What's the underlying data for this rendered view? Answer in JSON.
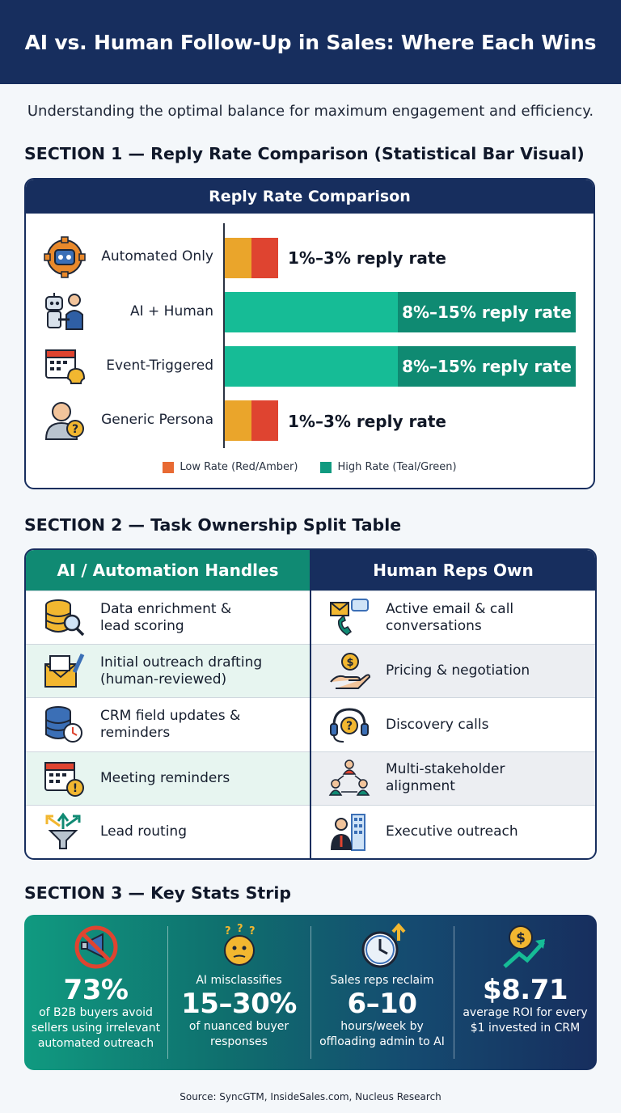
{
  "header": {
    "title": "AI vs. Human Follow-Up in Sales: Where Each Wins"
  },
  "subtitle": "Understanding the optimal balance for maximum engagement and efficiency.",
  "section1": {
    "title": "SECTION 1 — Reply Rate Comparison (Statistical Bar Visual)",
    "card_title": "Reply Rate Comparison",
    "rows": [
      {
        "label": "Automated Only",
        "bar_text": "1%–3% reply rate",
        "level": "low",
        "icon": "robot-gear-icon"
      },
      {
        "label": "AI + Human",
        "bar_text": "8%–15% reply rate",
        "level": "high",
        "icon": "robot-handshake-icon"
      },
      {
        "label": "Event-Triggered",
        "bar_text": "8%–15% reply rate",
        "level": "high",
        "icon": "calendar-bell-icon"
      },
      {
        "label": "Generic Persona",
        "bar_text": "1%–3% reply rate",
        "level": "low",
        "icon": "person-question-icon"
      }
    ],
    "legend": {
      "low": "Low Rate (Red/Amber)",
      "high": "High Rate (Teal/Green)"
    }
  },
  "chart_data": {
    "type": "bar",
    "title": "Reply Rate Comparison",
    "categories": [
      "Automated Only",
      "AI + Human",
      "Event-Triggered",
      "Generic Persona"
    ],
    "series": [
      {
        "name": "reply rate min (%)",
        "values": [
          1,
          8,
          8,
          1
        ]
      },
      {
        "name": "reply rate max (%)",
        "values": [
          3,
          15,
          15,
          3
        ]
      }
    ],
    "legend": [
      "Low Rate (Red/Amber)",
      "High Rate (Teal/Green)"
    ],
    "colors": {
      "low_amber": "#eaa52b",
      "low_red": "#df4430",
      "high_teal": "#16bc96",
      "high_dark": "#0f8a72"
    }
  },
  "section2": {
    "title": "SECTION 2 — Task Ownership Split Table",
    "left_header": "AI / Automation Handles",
    "right_header": "Human Reps Own",
    "left_rows": [
      {
        "text": "Data enrichment &\nlead scoring",
        "icon": "database-search-icon"
      },
      {
        "text": "Initial outreach drafting\n(human-reviewed)",
        "icon": "envelope-pen-icon"
      },
      {
        "text": "CRM field updates &\nreminders",
        "icon": "database-clock-icon"
      },
      {
        "text": "Meeting reminders",
        "icon": "calendar-alert-icon"
      },
      {
        "text": "Lead routing",
        "icon": "funnel-arrows-icon"
      }
    ],
    "right_rows": [
      {
        "text": "Active email & call\nconversations",
        "icon": "email-phone-icon"
      },
      {
        "text": "Pricing & negotiation",
        "icon": "hand-coin-icon"
      },
      {
        "text": "Discovery calls",
        "icon": "headset-question-icon"
      },
      {
        "text": "Multi-stakeholder\nalignment",
        "icon": "people-network-icon"
      },
      {
        "text": "Executive outreach",
        "icon": "executive-building-icon"
      }
    ]
  },
  "section3": {
    "title": "SECTION 3 — Key Stats Strip",
    "stats": [
      {
        "pre": "",
        "big": "73%",
        "text": "of B2B buyers avoid sellers using irrelevant automated outreach",
        "icon": "no-megaphone-icon"
      },
      {
        "pre": "AI misclassifies",
        "big": "15–30%",
        "text": "of nuanced buyer responses",
        "icon": "thinking-face-icon"
      },
      {
        "pre": "Sales reps reclaim",
        "big": "6–10",
        "text": "hours/week by offloading admin to AI",
        "icon": "clock-arrow-icon"
      },
      {
        "pre": "",
        "big": "$8.71",
        "text": "average ROI for every $1 invested in CRM",
        "icon": "dollar-growth-icon"
      }
    ]
  },
  "source": "Source: SyncGTM, InsideSales.com, Nucleus Research",
  "colors": {
    "navy": "#172e5e",
    "teal": "#108a73",
    "teal_light": "#16bc96",
    "amber": "#eaa52b",
    "red": "#df4430"
  }
}
